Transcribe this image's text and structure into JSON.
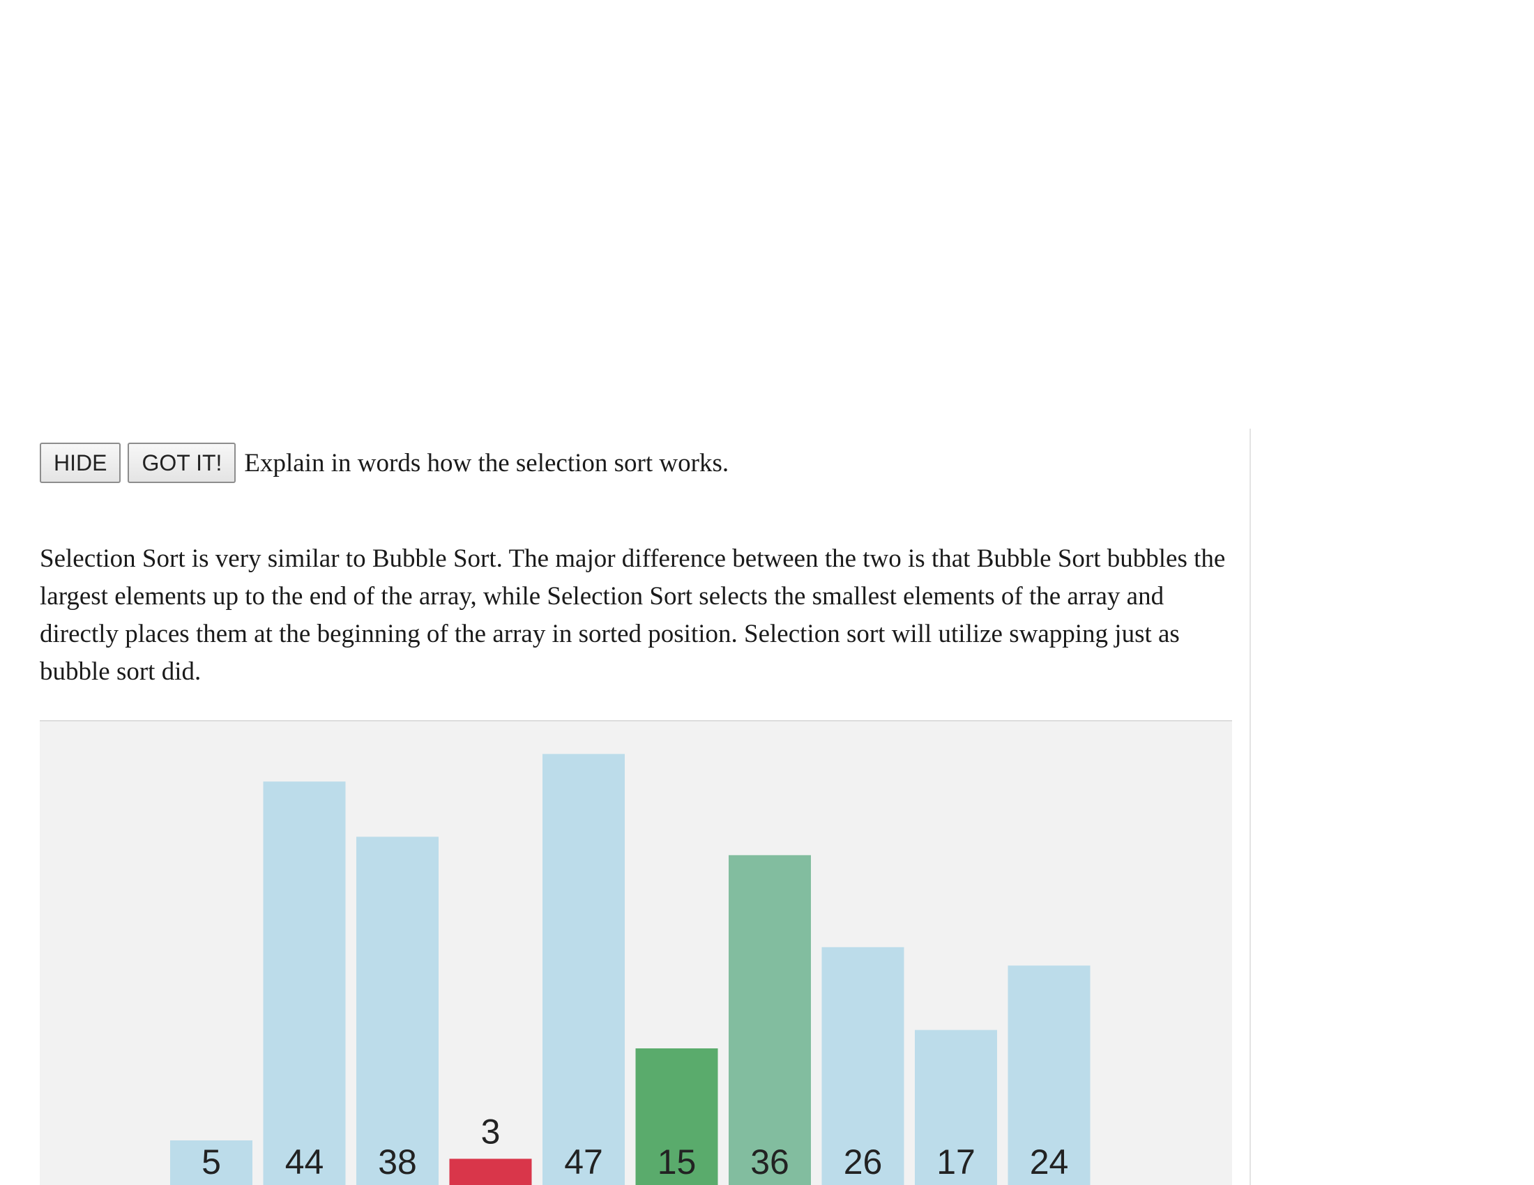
{
  "question": {
    "hide_label": "HIDE",
    "got_it_label": "GOT IT!",
    "prompt": "Explain in words how the selection sort works."
  },
  "explanation": "Selection Sort is very similar to Bubble Sort. The major difference between the two is that Bubble Sort bubbles the largest elements up to the end of the array, while Selection Sort selects the smallest elements of the array and directly places them at the beginning of the array in sorted position. Selection sort will utilize swapping just as bubble sort did.",
  "colors": {
    "default": "#bcdcea",
    "current_min": "#d9364a",
    "compare": "#5aab6c",
    "candidate": "#82bd9f"
  },
  "visualization": {
    "bars": [
      {
        "value": 5,
        "state": "default"
      },
      {
        "value": 44,
        "state": "default"
      },
      {
        "value": 38,
        "state": "default"
      },
      {
        "value": 3,
        "state": "current_min"
      },
      {
        "value": 47,
        "state": "default"
      },
      {
        "value": 15,
        "state": "compare"
      },
      {
        "value": 36,
        "state": "candidate"
      },
      {
        "value": 26,
        "state": "default"
      },
      {
        "value": 17,
        "state": "default"
      },
      {
        "value": 24,
        "state": "default"
      }
    ]
  }
}
